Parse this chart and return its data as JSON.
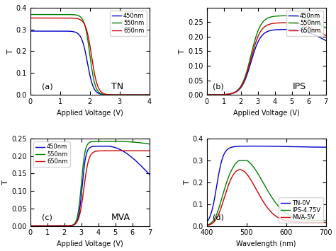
{
  "fig_width": 4.74,
  "fig_height": 3.55,
  "colors": {
    "blue": "#0000CC",
    "green": "#008000",
    "red": "#CC0000"
  },
  "panel_labels": [
    "(a)",
    "(b)",
    "(c)",
    "(d)"
  ],
  "panel_titles": [
    "TN",
    "IPS",
    "MVA",
    ""
  ],
  "legend_labels_abc": [
    "450nm",
    "550nm",
    "650nm"
  ],
  "legend_labels_d": [
    "TN-0V",
    "IPS-4.75V",
    "MVA-5V"
  ],
  "xlabel_abc": "Applied Voltage (V)",
  "xlabel_d": "Wavelength (nm)",
  "ylabel": "T"
}
